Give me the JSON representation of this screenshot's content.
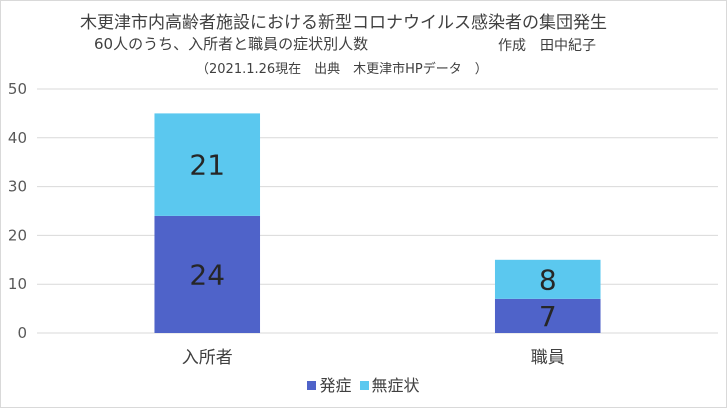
{
  "chart_data": {
    "type": "bar",
    "stacked": true,
    "title": "木更津市内高齢者施設における新型コロナウイルス感染者の集団発生",
    "subtitle": "60人のうち、入所者と職員の症状別人数",
    "author": "作成　田中紀子",
    "source": "（2021.1.26現在　出典　木更津市HPデータ　）",
    "categories": [
      "入所者",
      "職員"
    ],
    "series": [
      {
        "name": "発症",
        "values": [
          24,
          7
        ],
        "color": "#4f63c9"
      },
      {
        "name": "無症状",
        "values": [
          21,
          8
        ],
        "color": "#5bc8ef"
      }
    ],
    "ylim": [
      0,
      50
    ],
    "yticks": [
      0,
      10,
      20,
      30,
      40,
      50
    ],
    "grid": true,
    "legend": "bottom"
  },
  "colors": {
    "grid": "#d9d9d9",
    "axis": "#d9d9d9"
  }
}
